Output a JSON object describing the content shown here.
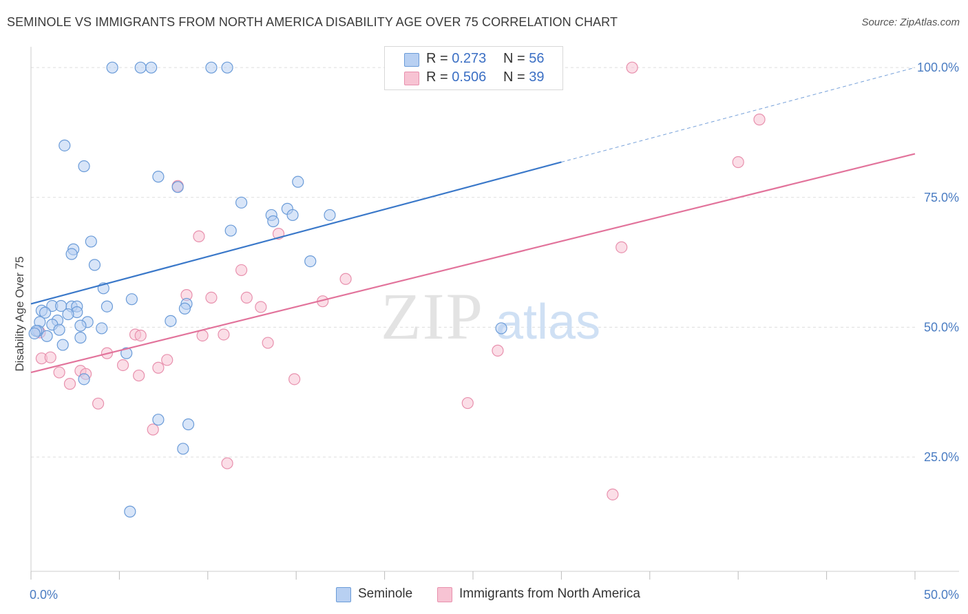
{
  "title": "SEMINOLE VS IMMIGRANTS FROM NORTH AMERICA DISABILITY AGE OVER 75 CORRELATION CHART",
  "source": "Source: ZipAtlas.com",
  "watermark": {
    "zip": "ZIP",
    "atlas": "atlas"
  },
  "legend_top": [
    {
      "r_label": "R =",
      "r_value": "0.273",
      "n_label": "N =",
      "n_value": "56"
    },
    {
      "r_label": "R =",
      "r_value": "0.506",
      "n_label": "N =",
      "n_value": "39"
    }
  ],
  "colors": {
    "seminole_fill": "#b8d0f2",
    "seminole_stroke": "#6a9bd8",
    "seminole_line": "#3a78c9",
    "immig_fill": "#f7c3d3",
    "immig_stroke": "#e890ad",
    "immig_line": "#e2739b",
    "tick_text": "#4a7cc2",
    "grid": "#dddddd"
  },
  "chart_data": {
    "type": "scatter",
    "title": "SEMINOLE VS IMMIGRANTS FROM NORTH AMERICA DISABILITY AGE OVER 75 CORRELATION CHART",
    "xlabel": "",
    "ylabel": "Disability Age Over 75",
    "xlim": [
      0,
      50
    ],
    "ylim": [
      3,
      104
    ],
    "x_tick_labels": [
      "0.0%",
      "50.0%"
    ],
    "y_tick_labels": [
      "25.0%",
      "50.0%",
      "75.0%",
      "100.0%"
    ],
    "y_ticks": [
      25,
      50,
      75,
      100
    ],
    "grid": true,
    "legend_position": "bottom",
    "series": [
      {
        "name": "Seminole",
        "r": 0.273,
        "n": 56,
        "trend": {
          "x0": 0,
          "y0": 54.5,
          "x1": 30,
          "y1": 81.8,
          "dashed_to_x": 50,
          "dashed_to_y": 100
        },
        "points": [
          [
            4.6,
            100
          ],
          [
            6.2,
            100
          ],
          [
            6.8,
            100
          ],
          [
            10.2,
            100
          ],
          [
            11.1,
            100
          ],
          [
            1.9,
            85
          ],
          [
            3.0,
            81
          ],
          [
            7.2,
            79
          ],
          [
            8.3,
            77
          ],
          [
            15.1,
            78
          ],
          [
            11.9,
            74
          ],
          [
            14.5,
            72.8
          ],
          [
            16.9,
            71.6
          ],
          [
            13.6,
            71.6
          ],
          [
            14.8,
            71.6
          ],
          [
            13.7,
            70.4
          ],
          [
            11.3,
            68.6
          ],
          [
            3.4,
            66.5
          ],
          [
            2.4,
            65
          ],
          [
            2.3,
            64.1
          ],
          [
            3.6,
            62
          ],
          [
            15.8,
            62.7
          ],
          [
            4.1,
            57.5
          ],
          [
            5.7,
            55.4
          ],
          [
            4.3,
            54
          ],
          [
            8.8,
            54.5
          ],
          [
            8.7,
            53.6
          ],
          [
            1.2,
            54.1
          ],
          [
            1.7,
            54.1
          ],
          [
            2.3,
            54
          ],
          [
            2.6,
            54
          ],
          [
            0.6,
            53.2
          ],
          [
            0.8,
            52.8
          ],
          [
            2.6,
            52.9
          ],
          [
            2.1,
            52.5
          ],
          [
            1.5,
            51.3
          ],
          [
            0.5,
            51
          ],
          [
            1.2,
            50.5
          ],
          [
            0.4,
            49.3
          ],
          [
            3.2,
            51
          ],
          [
            2.8,
            50.3
          ],
          [
            4.0,
            49.8
          ],
          [
            0.3,
            49.3
          ],
          [
            0.2,
            48.8
          ],
          [
            0.9,
            48.3
          ],
          [
            2.8,
            48
          ],
          [
            1.8,
            46.6
          ],
          [
            7.9,
            51.2
          ],
          [
            5.4,
            45
          ],
          [
            3.0,
            40
          ],
          [
            26.6,
            49.8
          ],
          [
            7.2,
            32.2
          ],
          [
            8.9,
            31.3
          ],
          [
            8.6,
            26.6
          ],
          [
            5.6,
            14.5
          ],
          [
            1.6,
            49.5
          ]
        ]
      },
      {
        "name": "Immigrants from North America",
        "r": 0.506,
        "n": 39,
        "trend": {
          "x0": 0,
          "y0": 41.3,
          "x1": 50,
          "y1": 83.4
        },
        "points": [
          [
            20.6,
            100
          ],
          [
            34.0,
            100
          ],
          [
            41.2,
            90
          ],
          [
            40.0,
            81.8
          ],
          [
            8.3,
            77.2
          ],
          [
            9.5,
            67.5
          ],
          [
            14.0,
            68
          ],
          [
            33.4,
            65.4
          ],
          [
            11.9,
            61
          ],
          [
            17.8,
            59.3
          ],
          [
            8.8,
            56.2
          ],
          [
            10.2,
            55.7
          ],
          [
            12.2,
            55.7
          ],
          [
            16.5,
            55
          ],
          [
            13.0,
            53.9
          ],
          [
            0.5,
            49
          ],
          [
            5.9,
            48.6
          ],
          [
            6.2,
            48.4
          ],
          [
            9.7,
            48.4
          ],
          [
            10.9,
            48.6
          ],
          [
            13.4,
            47
          ],
          [
            4.3,
            45
          ],
          [
            26.4,
            45.5
          ],
          [
            0.6,
            44
          ],
          [
            1.1,
            44.2
          ],
          [
            7.7,
            43.7
          ],
          [
            5.2,
            42.7
          ],
          [
            7.2,
            42.2
          ],
          [
            2.8,
            41.6
          ],
          [
            1.6,
            41.3
          ],
          [
            3.1,
            41
          ],
          [
            6.1,
            40.7
          ],
          [
            14.9,
            40
          ],
          [
            2.2,
            39.1
          ],
          [
            3.8,
            35.3
          ],
          [
            24.7,
            35.4
          ],
          [
            6.9,
            30.3
          ],
          [
            11.1,
            23.8
          ],
          [
            32.9,
            17.8
          ]
        ]
      }
    ]
  },
  "legend_bottom": [
    {
      "label": "Seminole"
    },
    {
      "label": "Immigrants from North America"
    }
  ]
}
